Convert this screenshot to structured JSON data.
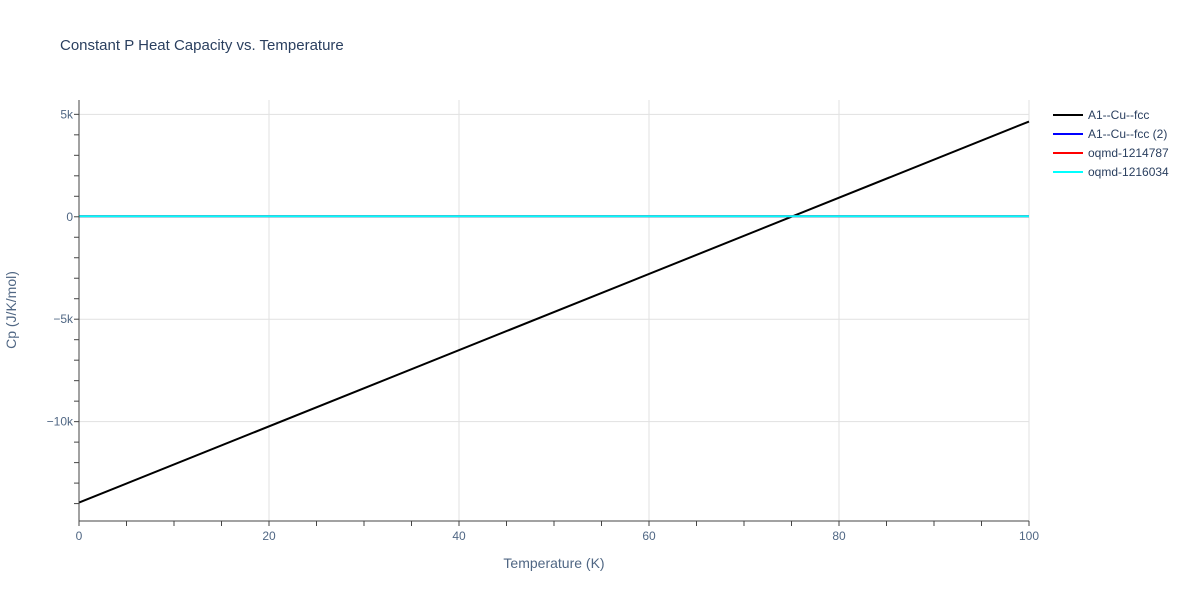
{
  "chart_data": {
    "type": "line",
    "title": "Constant P Heat Capacity vs. Temperature",
    "xlabel": "Temperature (K)",
    "ylabel": "Cp (J/K/mol)",
    "xlim": [
      0,
      100
    ],
    "ylim": [
      -14850,
      5700
    ],
    "x_ticks": [
      0,
      20,
      40,
      60,
      80,
      100
    ],
    "x_tick_labels": [
      "0",
      "20",
      "40",
      "60",
      "80",
      "100"
    ],
    "y_ticks": [
      5000,
      0,
      -5000,
      -10000
    ],
    "y_tick_labels": [
      "5k",
      "0",
      "−5k",
      "−10k"
    ],
    "grid": true,
    "legend_position": "right",
    "series": [
      {
        "name": "A1--Cu--fcc",
        "color": "#000000",
        "x": [
          0,
          100
        ],
        "y": [
          -13950,
          4650
        ]
      },
      {
        "name": "A1--Cu--fcc (2)",
        "color": "#0000ff",
        "x": [
          0,
          100
        ],
        "y": [
          25,
          25
        ]
      },
      {
        "name": "oqmd-1214787",
        "color": "#ff0000",
        "x": [
          0,
          100
        ],
        "y": [
          25,
          25
        ]
      },
      {
        "name": "oqmd-1216034",
        "color": "#00ffff",
        "x": [
          0,
          100
        ],
        "y": [
          25,
          25
        ]
      }
    ]
  }
}
